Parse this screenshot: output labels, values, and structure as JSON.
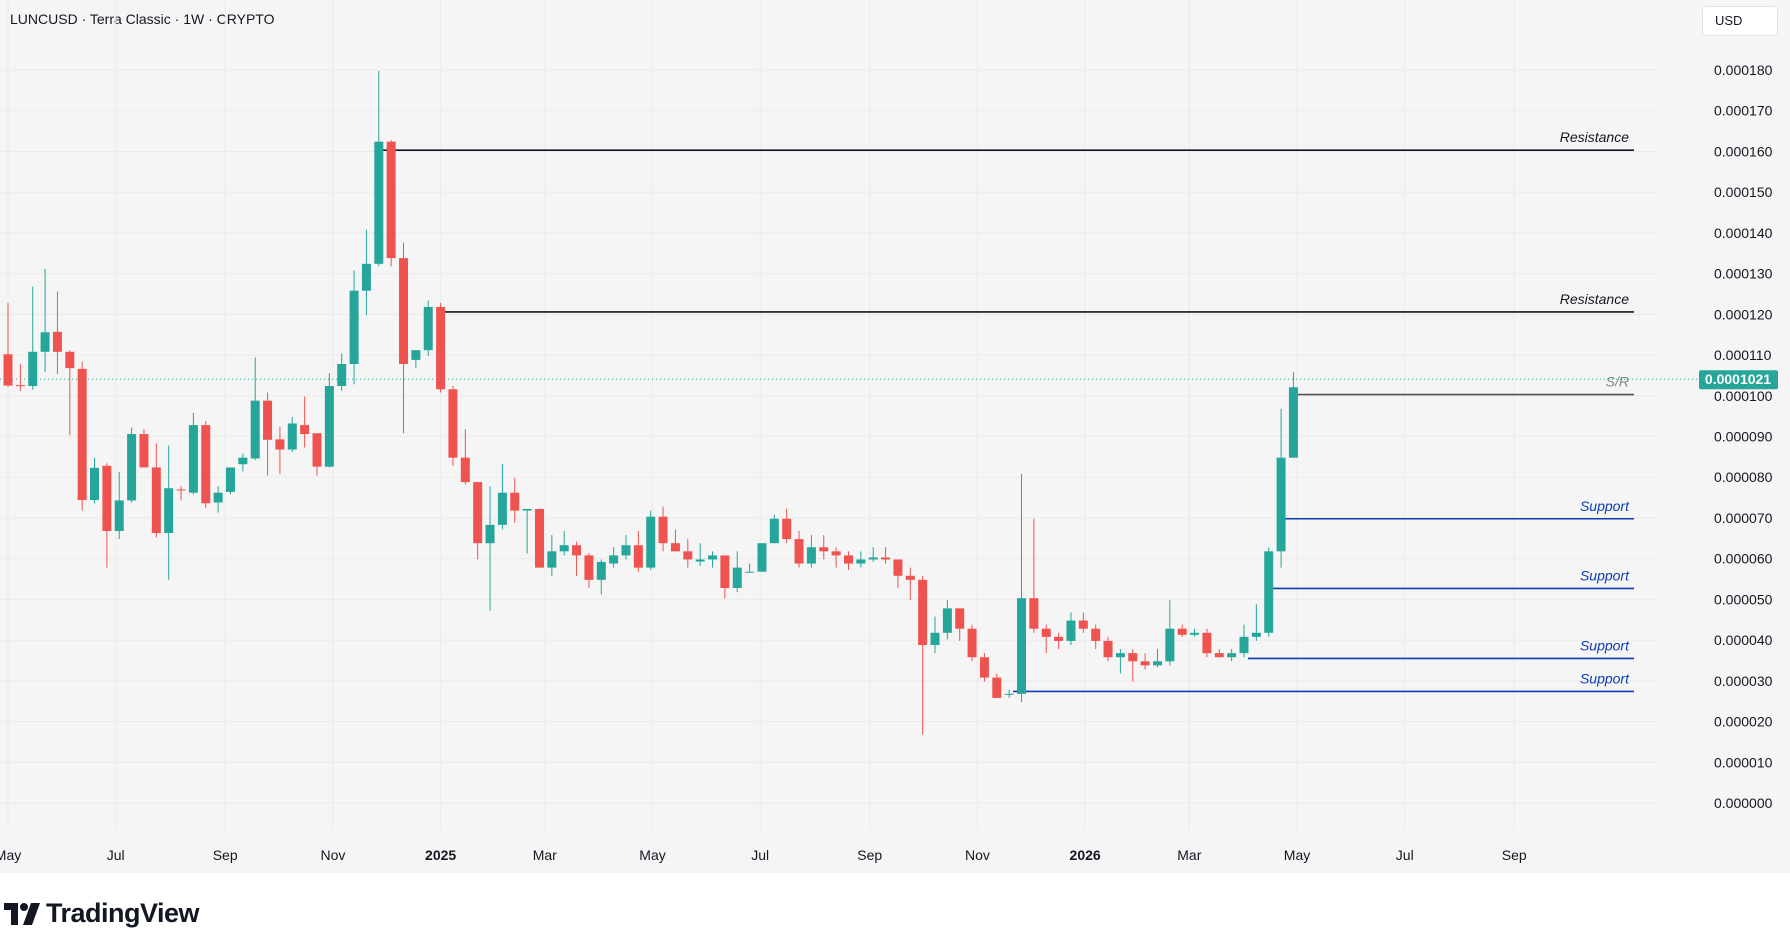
{
  "header": {
    "symbol_line": "LUNCUSD · Terra Classic · 1W · CRYPTO",
    "currency": "USD"
  },
  "footer": {
    "brand": "TradingView"
  },
  "colors": {
    "up": "#26a69a",
    "down": "#ef5350",
    "resistance": "#131722",
    "support": "#0d3cb0",
    "sr": "#555555",
    "last_price": "#26a69a"
  },
  "chart_data": {
    "type": "candlestick",
    "title": "",
    "y_axis": {
      "range": [
        0,
        0.00018
      ],
      "ticks": [
        "0.000000",
        "0.000010",
        "0.000020",
        "0.000030",
        "0.000040",
        "0.000050",
        "0.000060",
        "0.000070",
        "0.000080",
        "0.000090",
        "0.000100",
        "0.000110",
        "0.000120",
        "0.000130",
        "0.000140",
        "0.000150",
        "0.000160",
        "0.000170",
        "0.000180"
      ],
      "side": "right"
    },
    "x_axis": {
      "range": [
        "2024-04-29",
        "2026-09-14"
      ],
      "labels": [
        {
          "date": "2024-05-01",
          "text": "May",
          "bold": false
        },
        {
          "date": "2024-07-01",
          "text": "Jul",
          "bold": false
        },
        {
          "date": "2024-09-01",
          "text": "Sep",
          "bold": false
        },
        {
          "date": "2024-11-01",
          "text": "Nov",
          "bold": false
        },
        {
          "date": "2025-01-01",
          "text": "2025",
          "bold": true
        },
        {
          "date": "2025-03-01",
          "text": "Mar",
          "bold": false
        },
        {
          "date": "2025-05-01",
          "text": "May",
          "bold": false
        },
        {
          "date": "2025-07-01",
          "text": "Jul",
          "bold": false
        },
        {
          "date": "2025-09-01",
          "text": "Sep",
          "bold": false
        },
        {
          "date": "2025-11-01",
          "text": "Nov",
          "bold": false
        },
        {
          "date": "2026-01-01",
          "text": "2026",
          "bold": true
        },
        {
          "date": "2026-03-01",
          "text": "Mar",
          "bold": false
        },
        {
          "date": "2026-05-01",
          "text": "May",
          "bold": false
        },
        {
          "date": "2026-07-01",
          "text": "Jul",
          "bold": false
        },
        {
          "date": "2026-09-01",
          "text": "Sep",
          "bold": false
        }
      ]
    },
    "last_price": {
      "value": 0.0001021,
      "label": "0.0001021"
    },
    "candles": [
      {
        "o": 0.0001102,
        "h": 0.0001228,
        "l": 0.0001022,
        "c": 0.0001025
      },
      {
        "o": 0.0001026,
        "h": 0.0001078,
        "l": 0.0001012,
        "c": 0.0001024
      },
      {
        "o": 0.0001024,
        "h": 0.0001268,
        "l": 0.0001015,
        "c": 0.0001108
      },
      {
        "o": 0.0001108,
        "h": 0.0001312,
        "l": 0.0001058,
        "c": 0.0001156
      },
      {
        "o": 0.0001157,
        "h": 0.0001256,
        "l": 0.0001054,
        "c": 0.0001108
      },
      {
        "o": 0.0001108,
        "h": 0.0001112,
        "l": 9.03e-05,
        "c": 0.0001068
      },
      {
        "o": 0.0001066,
        "h": 0.0001084,
        "l": 7.18e-05,
        "c": 7.44e-05
      },
      {
        "o": 7.44e-05,
        "h": 8.48e-05,
        "l": 7.36e-05,
        "c": 8.23e-05
      },
      {
        "o": 8.28e-05,
        "h": 8.34e-05,
        "l": 5.78e-05,
        "c": 6.68e-05
      },
      {
        "o": 6.68e-05,
        "h": 8.13e-05,
        "l": 6.48e-05,
        "c": 7.43e-05
      },
      {
        "o": 7.43e-05,
        "h": 9.22e-05,
        "l": 7.38e-05,
        "c": 9.06e-05
      },
      {
        "o": 9.06e-05,
        "h": 9.18e-05,
        "l": 8.28e-05,
        "c": 8.24e-05
      },
      {
        "o": 8.24e-05,
        "h": 8.83e-05,
        "l": 6.52e-05,
        "c": 6.63e-05
      },
      {
        "o": 6.63e-05,
        "h": 8.78e-05,
        "l": 5.48e-05,
        "c": 7.73e-05
      },
      {
        "o": 7.7e-05,
        "h": 7.78e-05,
        "l": 7.43e-05,
        "c": 7.68e-05
      },
      {
        "o": 7.62e-05,
        "h": 9.58e-05,
        "l": 7.58e-05,
        "c": 9.28e-05
      },
      {
        "o": 9.28e-05,
        "h": 9.38e-05,
        "l": 7.24e-05,
        "c": 7.36e-05
      },
      {
        "o": 7.38e-05,
        "h": 7.78e-05,
        "l": 7.13e-05,
        "c": 7.62e-05
      },
      {
        "o": 7.64e-05,
        "h": 8.22e-05,
        "l": 7.58e-05,
        "c": 8.24e-05
      },
      {
        "o": 8.32e-05,
        "h": 8.58e-05,
        "l": 8.14e-05,
        "c": 8.48e-05
      },
      {
        "o": 8.46e-05,
        "h": 0.0001094,
        "l": 8.42e-05,
        "c": 9.88e-05
      },
      {
        "o": 9.88e-05,
        "h": 0.0001008,
        "l": 8.04e-05,
        "c": 8.92e-05
      },
      {
        "o": 8.93e-05,
        "h": 9.24e-05,
        "l": 8.08e-05,
        "c": 8.68e-05
      },
      {
        "o": 8.68e-05,
        "h": 9.48e-05,
        "l": 8.62e-05,
        "c": 9.32e-05
      },
      {
        "o": 9.28e-05,
        "h": 9.98e-05,
        "l": 8.73e-05,
        "c": 9.06e-05
      },
      {
        "o": 9.08e-05,
        "h": 9.08e-05,
        "l": 8.04e-05,
        "c": 8.26e-05
      },
      {
        "o": 8.26e-05,
        "h": 0.0001056,
        "l": 8.24e-05,
        "c": 0.0001024
      },
      {
        "o": 0.0001024,
        "h": 0.0001104,
        "l": 0.0001012,
        "c": 0.0001078
      },
      {
        "o": 0.0001078,
        "h": 0.0001308,
        "l": 0.0001028,
        "c": 0.0001258
      },
      {
        "o": 0.0001258,
        "h": 0.0001408,
        "l": 0.0001198,
        "c": 0.0001324
      },
      {
        "o": 0.0001324,
        "h": 0.0001798,
        "l": 0.0001318,
        "c": 0.0001624
      },
      {
        "o": 0.0001624,
        "h": 0.0001628,
        "l": 0.0001318,
        "c": 0.0001338
      },
      {
        "o": 0.0001338,
        "h": 0.0001376,
        "l": 9.08e-05,
        "c": 0.0001078
      },
      {
        "o": 0.0001088,
        "h": 0.0001108,
        "l": 0.0001068,
        "c": 0.0001112
      },
      {
        "o": 0.0001112,
        "h": 0.0001234,
        "l": 0.0001098,
        "c": 0.0001218
      },
      {
        "o": 0.0001218,
        "h": 0.0001228,
        "l": 0.0001008,
        "c": 0.0001016
      },
      {
        "o": 0.0001016,
        "h": 0.0001024,
        "l": 8.28e-05,
        "c": 8.48e-05
      },
      {
        "o": 8.48e-05,
        "h": 9.18e-05,
        "l": 7.82e-05,
        "c": 7.88e-05
      },
      {
        "o": 7.88e-05,
        "h": 7.88e-05,
        "l": 5.98e-05,
        "c": 6.38e-05
      },
      {
        "o": 6.38e-05,
        "h": 7.78e-05,
        "l": 4.72e-05,
        "c": 6.83e-05
      },
      {
        "o": 6.83e-05,
        "h": 8.33e-05,
        "l": 6.72e-05,
        "c": 7.62e-05
      },
      {
        "o": 7.62e-05,
        "h": 7.98e-05,
        "l": 6.88e-05,
        "c": 7.18e-05
      },
      {
        "o": 7.18e-05,
        "h": 7.18e-05,
        "l": 6.13e-05,
        "c": 7.22e-05
      },
      {
        "o": 7.22e-05,
        "h": 7.23e-05,
        "l": 5.88e-05,
        "c": 5.78e-05
      },
      {
        "o": 5.78e-05,
        "h": 6.58e-05,
        "l": 5.58e-05,
        "c": 6.18e-05
      },
      {
        "o": 6.18e-05,
        "h": 6.68e-05,
        "l": 6.08e-05,
        "c": 6.33e-05
      },
      {
        "o": 6.33e-05,
        "h": 6.42e-05,
        "l": 5.58e-05,
        "c": 6.08e-05
      },
      {
        "o": 6.08e-05,
        "h": 6.14e-05,
        "l": 5.28e-05,
        "c": 5.48e-05
      },
      {
        "o": 5.48e-05,
        "h": 5.98e-05,
        "l": 5.12e-05,
        "c": 5.92e-05
      },
      {
        "o": 5.88e-05,
        "h": 6.28e-05,
        "l": 5.78e-05,
        "c": 6.08e-05
      },
      {
        "o": 6.08e-05,
        "h": 6.58e-05,
        "l": 5.98e-05,
        "c": 6.33e-05
      },
      {
        "o": 6.33e-05,
        "h": 6.68e-05,
        "l": 5.68e-05,
        "c": 5.78e-05
      },
      {
        "o": 5.78e-05,
        "h": 7.18e-05,
        "l": 5.72e-05,
        "c": 7.03e-05
      },
      {
        "o": 7.03e-05,
        "h": 7.28e-05,
        "l": 6.18e-05,
        "c": 6.38e-05
      },
      {
        "o": 6.38e-05,
        "h": 6.72e-05,
        "l": 6.18e-05,
        "c": 6.18e-05
      },
      {
        "o": 6.18e-05,
        "h": 6.48e-05,
        "l": 5.78e-05,
        "c": 5.98e-05
      },
      {
        "o": 5.93e-05,
        "h": 6.38e-05,
        "l": 5.82e-05,
        "c": 5.98e-05
      },
      {
        "o": 5.98e-05,
        "h": 6.18e-05,
        "l": 5.78e-05,
        "c": 6.08e-05
      },
      {
        "o": 6.08e-05,
        "h": 6.08e-05,
        "l": 5.02e-05,
        "c": 5.28e-05
      },
      {
        "o": 5.28e-05,
        "h": 6.18e-05,
        "l": 5.18e-05,
        "c": 5.78e-05
      },
      {
        "o": 5.68e-05,
        "h": 5.88e-05,
        "l": 5.68e-05,
        "c": 5.68e-05
      },
      {
        "o": 5.68e-05,
        "h": 6.38e-05,
        "l": 5.68e-05,
        "c": 6.38e-05
      },
      {
        "o": 6.38e-05,
        "h": 7.08e-05,
        "l": 6.38e-05,
        "c": 6.98e-05
      },
      {
        "o": 6.98e-05,
        "h": 7.23e-05,
        "l": 6.38e-05,
        "c": 6.48e-05
      },
      {
        "o": 6.48e-05,
        "h": 6.68e-05,
        "l": 5.78e-05,
        "c": 5.88e-05
      },
      {
        "o": 5.88e-05,
        "h": 6.58e-05,
        "l": 5.78e-05,
        "c": 6.28e-05
      },
      {
        "o": 6.28e-05,
        "h": 6.58e-05,
        "l": 5.98e-05,
        "c": 6.18e-05
      },
      {
        "o": 6.18e-05,
        "h": 6.28e-05,
        "l": 5.78e-05,
        "c": 6.08e-05
      },
      {
        "o": 6.08e-05,
        "h": 6.18e-05,
        "l": 5.72e-05,
        "c": 5.88e-05
      },
      {
        "o": 5.88e-05,
        "h": 6.18e-05,
        "l": 5.78e-05,
        "c": 5.98e-05
      },
      {
        "o": 5.98e-05,
        "h": 6.28e-05,
        "l": 5.92e-05,
        "c": 6.03e-05
      },
      {
        "o": 6.03e-05,
        "h": 6.28e-05,
        "l": 5.88e-05,
        "c": 5.98e-05
      },
      {
        "o": 5.98e-05,
        "h": 5.98e-05,
        "l": 5.28e-05,
        "c": 5.58e-05
      },
      {
        "o": 5.58e-05,
        "h": 5.78e-05,
        "l": 4.98e-05,
        "c": 5.48e-05
      },
      {
        "o": 5.48e-05,
        "h": 5.58e-05,
        "l": 1.68e-05,
        "c": 3.88e-05
      },
      {
        "o": 3.88e-05,
        "h": 4.58e-05,
        "l": 3.68e-05,
        "c": 4.18e-05
      },
      {
        "o": 4.18e-05,
        "h": 4.98e-05,
        "l": 4.02e-05,
        "c": 4.78e-05
      },
      {
        "o": 4.78e-05,
        "h": 4.78e-05,
        "l": 3.98e-05,
        "c": 4.28e-05
      },
      {
        "o": 4.28e-05,
        "h": 4.38e-05,
        "l": 3.48e-05,
        "c": 3.58e-05
      },
      {
        "o": 3.58e-05,
        "h": 3.68e-05,
        "l": 2.98e-05,
        "c": 3.08e-05
      },
      {
        "o": 3.08e-05,
        "h": 3.18e-05,
        "l": 2.58e-05,
        "c": 2.58e-05
      },
      {
        "o": 2.68e-05,
        "h": 2.78e-05,
        "l": 2.58e-05,
        "c": 2.68e-05
      },
      {
        "o": 2.68e-05,
        "h": 8.08e-05,
        "l": 2.48e-05,
        "c": 5.03e-05
      },
      {
        "o": 5.03e-05,
        "h": 6.98e-05,
        "l": 4.18e-05,
        "c": 4.28e-05
      },
      {
        "o": 4.28e-05,
        "h": 4.38e-05,
        "l": 3.68e-05,
        "c": 4.08e-05
      },
      {
        "o": 4.08e-05,
        "h": 4.18e-05,
        "l": 3.78e-05,
        "c": 3.98e-05
      },
      {
        "o": 3.98e-05,
        "h": 4.68e-05,
        "l": 3.88e-05,
        "c": 4.48e-05
      },
      {
        "o": 4.48e-05,
        "h": 4.68e-05,
        "l": 4.18e-05,
        "c": 4.28e-05
      },
      {
        "o": 4.28e-05,
        "h": 4.38e-05,
        "l": 3.78e-05,
        "c": 3.98e-05
      },
      {
        "o": 3.98e-05,
        "h": 4.08e-05,
        "l": 3.48e-05,
        "c": 3.58e-05
      },
      {
        "o": 3.58e-05,
        "h": 3.78e-05,
        "l": 3.18e-05,
        "c": 3.68e-05
      },
      {
        "o": 3.68e-05,
        "h": 3.78e-05,
        "l": 2.98e-05,
        "c": 3.48e-05
      },
      {
        "o": 3.48e-05,
        "h": 3.68e-05,
        "l": 3.28e-05,
        "c": 3.38e-05
      },
      {
        "o": 3.38e-05,
        "h": 3.78e-05,
        "l": 3.33e-05,
        "c": 3.48e-05
      },
      {
        "o": 3.48e-05,
        "h": 4.98e-05,
        "l": 3.38e-05,
        "c": 4.28e-05
      },
      {
        "o": 4.28e-05,
        "h": 4.38e-05,
        "l": 4.08e-05,
        "c": 4.13e-05
      },
      {
        "o": 4.13e-05,
        "h": 4.28e-05,
        "l": 4.08e-05,
        "c": 4.18e-05
      },
      {
        "o": 4.18e-05,
        "h": 4.28e-05,
        "l": 3.58e-05,
        "c": 3.68e-05
      },
      {
        "o": 3.68e-05,
        "h": 3.78e-05,
        "l": 3.58e-05,
        "c": 3.58e-05
      },
      {
        "o": 3.58e-05,
        "h": 3.78e-05,
        "l": 3.48e-05,
        "c": 3.68e-05
      },
      {
        "o": 3.68e-05,
        "h": 4.38e-05,
        "l": 3.58e-05,
        "c": 4.08e-05
      },
      {
        "o": 4.08e-05,
        "h": 4.88e-05,
        "l": 3.98e-05,
        "c": 4.18e-05
      },
      {
        "o": 4.18e-05,
        "h": 6.28e-05,
        "l": 4.08e-05,
        "c": 6.18e-05
      },
      {
        "o": 6.18e-05,
        "h": 9.68e-05,
        "l": 5.78e-05,
        "c": 8.48e-05
      },
      {
        "o": 8.48e-05,
        "h": 0.0001058,
        "l": 8.48e-05,
        "c": 0.0001021
      }
    ],
    "levels": [
      {
        "kind": "resistance",
        "label": "Resistance",
        "value": 0.0001603,
        "start_candle": 30,
        "color": "#131722"
      },
      {
        "kind": "resistance",
        "label": "Resistance",
        "value": 0.0001206,
        "start_candle": 35,
        "color": "#131722"
      },
      {
        "kind": "sr",
        "label": "S/R",
        "value": 0.0001003,
        "start_candle": 104,
        "color": "#555555"
      },
      {
        "kind": "support",
        "label": "Support",
        "value": 6.98e-05,
        "start_candle": 103,
        "color": "#0d3cb0"
      },
      {
        "kind": "support",
        "label": "Support",
        "value": 5.27e-05,
        "start_candle": 102,
        "color": "#0d3cb0"
      },
      {
        "kind": "support",
        "label": "Support",
        "value": 3.55e-05,
        "start_candle": 100,
        "color": "#0d3cb0"
      },
      {
        "kind": "support",
        "label": "Support",
        "value": 2.74e-05,
        "start_candle": 81,
        "color": "#0d3cb0"
      }
    ]
  }
}
